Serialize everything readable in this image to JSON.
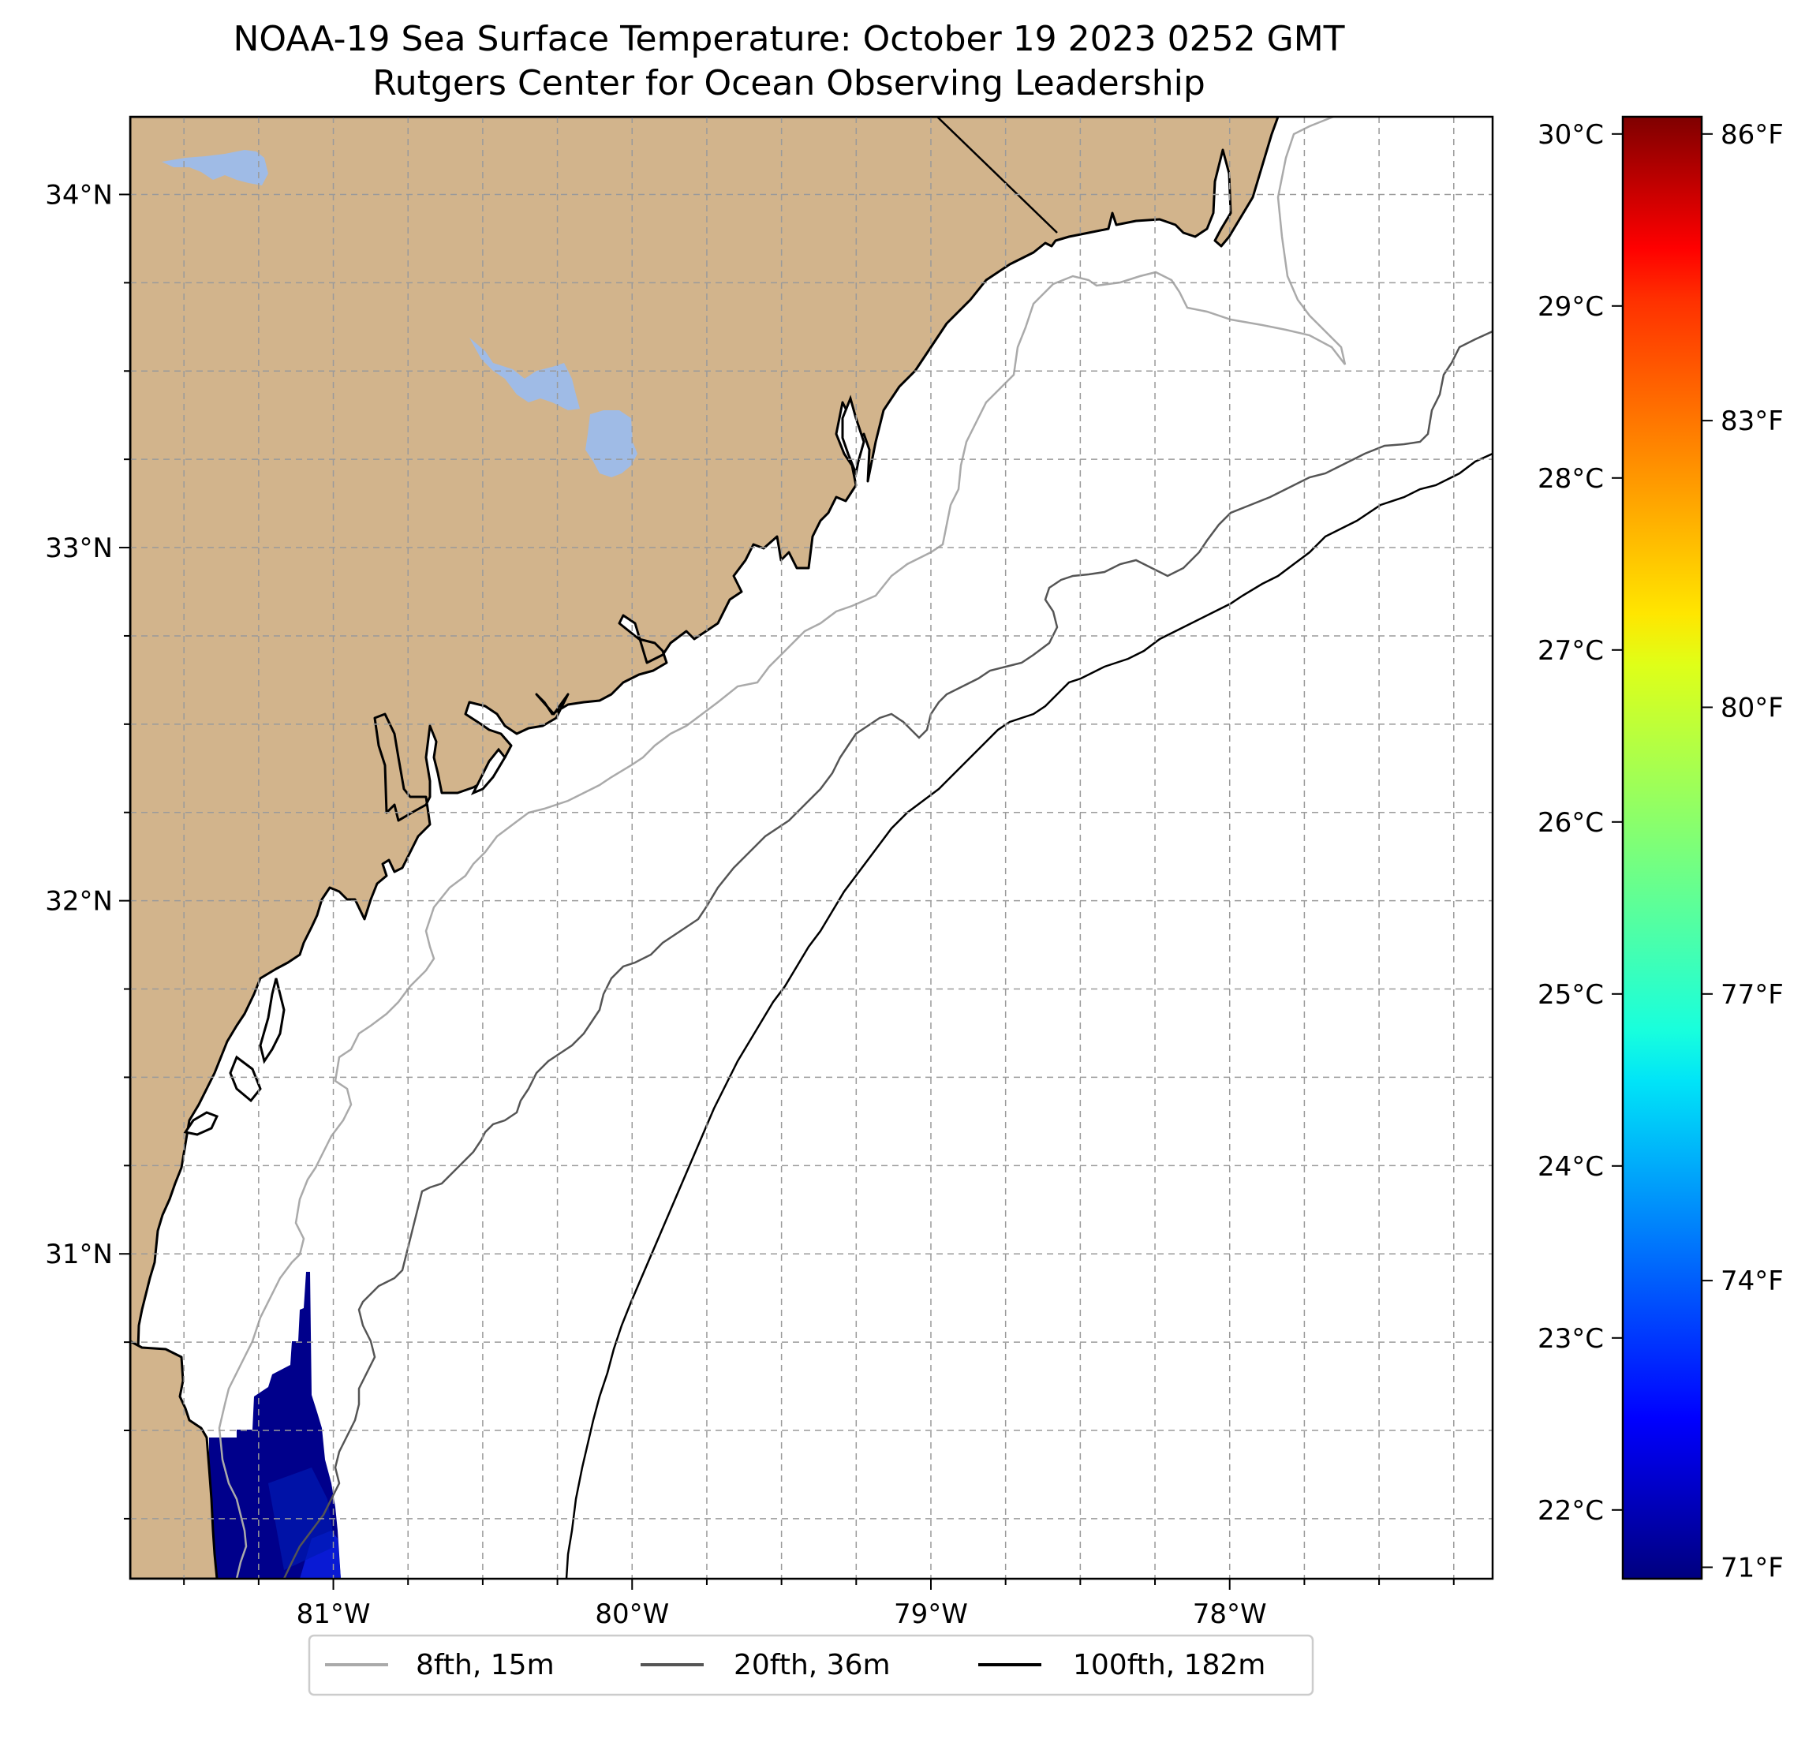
{
  "title": {
    "line1": "NOAA-19 Sea Surface Temperature: October 19 2023 0252 GMT",
    "line2": "Rutgers Center for Ocean Observing Leadership"
  },
  "map": {
    "lon_range": [
      -81.68,
      -77.12
    ],
    "lat_range": [
      30.08,
      34.22
    ],
    "lat_ticks": [
      {
        "value": 34,
        "label": "34°N"
      },
      {
        "value": 33,
        "label": "33°N"
      },
      {
        "value": 32,
        "label": "32°N"
      },
      {
        "value": 31,
        "label": "31°N"
      }
    ],
    "lon_ticks": [
      {
        "value": -81,
        "label": "81°W"
      },
      {
        "value": -80,
        "label": "80°W"
      },
      {
        "value": -79,
        "label": "79°W"
      },
      {
        "value": -78,
        "label": "78°W"
      }
    ],
    "land_color": "#d2b48c",
    "water_color": "#9fbbe6",
    "ocean_color": "#ffffff"
  },
  "colorbar": {
    "colormap": "jet",
    "celsius_ticks": [
      "30°C",
      "29°C",
      "28°C",
      "27°C",
      "26°C",
      "25°C",
      "24°C",
      "23°C",
      "22°C"
    ],
    "celsius_values": [
      30,
      29,
      28,
      27,
      26,
      25,
      24,
      23,
      22
    ],
    "fahrenheit_ticks": [
      "86°F",
      "83°F",
      "80°F",
      "77°F",
      "74°F",
      "71°F"
    ],
    "fahrenheit_values": [
      86,
      83,
      80,
      77,
      74,
      71
    ],
    "range_c": [
      21.6,
      30.1
    ]
  },
  "legend": {
    "items": [
      {
        "label": "8fth, 15m",
        "color": "#aaaaaa"
      },
      {
        "label": "20fth, 36m",
        "color": "#555555"
      },
      {
        "label": "100fth, 182m",
        "color": "#000000"
      }
    ]
  }
}
